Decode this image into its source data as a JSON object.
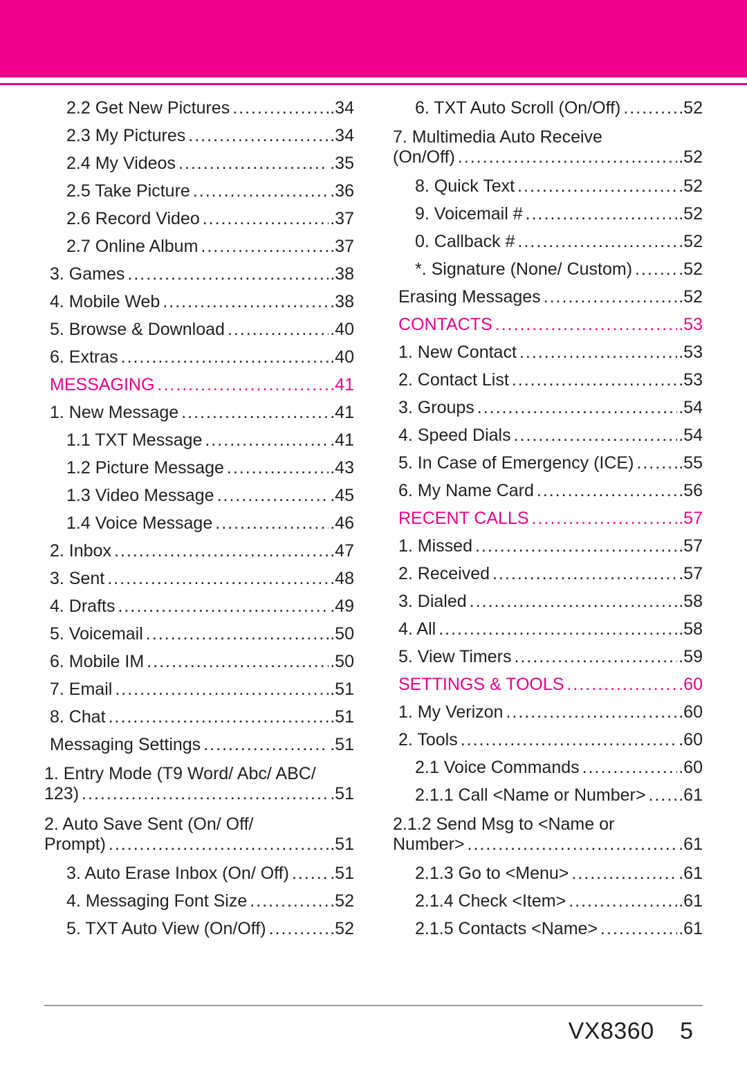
{
  "colors": {
    "accent": "#ec008c",
    "text": "#231f20",
    "rule": "#9e9e9e",
    "background": "#ffffff"
  },
  "typography": {
    "body_fontsize_pt": 19,
    "footer_fontsize_pt": 26,
    "font_family": "Arial"
  },
  "leftColumn": [
    {
      "label": "2.2 Get New Pictures",
      "page": "34",
      "level": 1
    },
    {
      "label": "2.3 My Pictures",
      "page": "34",
      "level": 1
    },
    {
      "label": "2.4 My Videos",
      "page": "35",
      "level": 1
    },
    {
      "label": "2.5 Take Picture",
      "page": "36",
      "level": 1
    },
    {
      "label": "2.6 Record Video",
      "page": "37",
      "level": 1
    },
    {
      "label": "2.7 Online Album",
      "page": "37",
      "level": 1
    },
    {
      "label": "3. Games",
      "page": "38",
      "level": 0
    },
    {
      "label": "4. Mobile Web",
      "page": "38",
      "level": 0
    },
    {
      "label": "5. Browse & Download",
      "page": "40",
      "level": 0
    },
    {
      "label": "6. Extras",
      "page": "40",
      "level": 0
    },
    {
      "label": "MESSAGING",
      "page": "41",
      "level": 0,
      "section": true
    },
    {
      "label": "1. New Message",
      "page": "41",
      "level": 0
    },
    {
      "label": "1.1 TXT Message",
      "page": "41",
      "level": 1
    },
    {
      "label": "1.2 Picture Message",
      "page": "43",
      "level": 1
    },
    {
      "label": "1.3 Video Message",
      "page": "45",
      "level": 1
    },
    {
      "label": "1.4 Voice Message",
      "page": "46",
      "level": 1
    },
    {
      "label": "2. Inbox",
      "page": "47",
      "level": 0
    },
    {
      "label": "3. Sent",
      "page": "48",
      "level": 0
    },
    {
      "label": "4. Drafts",
      "page": "49",
      "level": 0
    },
    {
      "label": "5. Voicemail",
      "page": "50",
      "level": 0
    },
    {
      "label": "6. Mobile IM",
      "page": "50",
      "level": 0
    },
    {
      "label": "7. Email",
      "page": "51",
      "level": 0
    },
    {
      "label": "8. Chat",
      "page": "51",
      "level": 0
    },
    {
      "label": "Messaging Settings",
      "page": "51",
      "level": 0
    },
    {
      "wrap": true,
      "top": "1. Entry Mode (T9 Word/ Abc/ ABC/",
      "bottom": "123)",
      "page": "51",
      "level": 1
    },
    {
      "wrap": true,
      "top": "2. Auto Save Sent (On/ Off/",
      "bottom": "Prompt)",
      "page": "51",
      "level": 1
    },
    {
      "label": "3. Auto Erase Inbox (On/ Off)",
      "page": "51",
      "level": 1
    },
    {
      "label": "4. Messaging Font Size",
      "page": "52",
      "level": 1
    },
    {
      "label": "5. TXT Auto View (On/Off)",
      "page": "52",
      "level": 1
    }
  ],
  "rightColumn": [
    {
      "label": "6. TXT Auto Scroll (On/Off)",
      "page": "52",
      "level": 1
    },
    {
      "wrap": true,
      "top": "7.  Multimedia Auto Receive",
      "bottom": "(On/Off)",
      "page": "52",
      "level": 1
    },
    {
      "label": "8. Quick Text",
      "page": "52",
      "level": 1
    },
    {
      "label": "9. Voicemail #",
      "page": "52",
      "level": 1
    },
    {
      "label": "0. Callback #",
      "page": "52",
      "level": 1
    },
    {
      "label": "*. Signature (None/ Custom)",
      "page": "52",
      "level": 1
    },
    {
      "label": "Erasing Messages",
      "page": "52",
      "level": 0
    },
    {
      "label": "CONTACTS",
      "page": "53",
      "level": 0,
      "section": true
    },
    {
      "label": "1. New Contact",
      "page": "53",
      "level": 0
    },
    {
      "label": "2. Contact List",
      "page": "53",
      "level": 0
    },
    {
      "label": "3. Groups",
      "page": "54",
      "level": 0
    },
    {
      "label": "4. Speed Dials",
      "page": "54",
      "level": 0
    },
    {
      "label": "5.  In Case of Emergency (ICE)",
      "page": "55",
      "level": 0
    },
    {
      "label": "6. My Name Card",
      "page": "56",
      "level": 0
    },
    {
      "label": "RECENT CALLS",
      "page": "57",
      "level": 0,
      "section": true
    },
    {
      "label": "1. Missed",
      "page": "57",
      "level": 0
    },
    {
      "label": "2. Received",
      "page": "57",
      "level": 0
    },
    {
      "label": "3. Dialed",
      "page": "58",
      "level": 0
    },
    {
      "label": "4. All",
      "page": "58",
      "level": 0
    },
    {
      "label": "5. View Timers",
      "page": "59",
      "level": 0
    },
    {
      "label": "SETTINGS & TOOLS",
      "page": "60",
      "level": 0,
      "section": true
    },
    {
      "label": "1. My Verizon",
      "page": "60",
      "level": 0
    },
    {
      "label": "2. Tools",
      "page": "60",
      "level": 0
    },
    {
      "label": "2.1 Voice Commands",
      "page": "60",
      "level": 1
    },
    {
      "label": "2.1.1 Call <Name or Number>",
      "page": "61",
      "level": 1
    },
    {
      "wrap": true,
      "top": "2.1.2  Send Msg to <Name or",
      "bottom": "Number>",
      "page": "61",
      "level": 1
    },
    {
      "label": "2.1.3 Go to <Menu>",
      "page": "61",
      "level": 1
    },
    {
      "label": "2.1.4 Check <Item>",
      "page": "61",
      "level": 1
    },
    {
      "label": "2.1.5 Contacts <Name>",
      "page": "61",
      "level": 1
    }
  ],
  "footer": {
    "model": "VX8360",
    "page": "5"
  }
}
